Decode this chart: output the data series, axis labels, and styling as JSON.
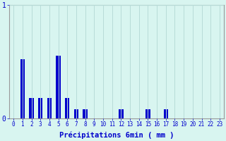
{
  "title": "",
  "xlabel": "Précipitations 6min ( mm )",
  "ylabel": "",
  "background_color": "#d8f5f0",
  "plot_background": "#d8f5f0",
  "bar_color": "#0000cc",
  "grid_color": "#b8dcd8",
  "axis_color": "#999999",
  "text_color": "#0000cc",
  "hours": [
    0,
    1,
    2,
    3,
    4,
    5,
    6,
    7,
    8,
    9,
    10,
    11,
    12,
    13,
    14,
    15,
    16,
    17,
    18,
    19,
    20,
    21,
    22,
    23
  ],
  "values": [
    0,
    0.52,
    0.18,
    0.18,
    0.18,
    0.55,
    0.18,
    0.08,
    0.08,
    0,
    0,
    0,
    0.08,
    0,
    0,
    0.08,
    0,
    0.08,
    0,
    0,
    0,
    0,
    0,
    0
  ],
  "ylim": [
    0,
    1.0
  ],
  "yticks": [
    0,
    1
  ],
  "xlim": [
    -0.5,
    23.5
  ],
  "bar_width": 0.5
}
